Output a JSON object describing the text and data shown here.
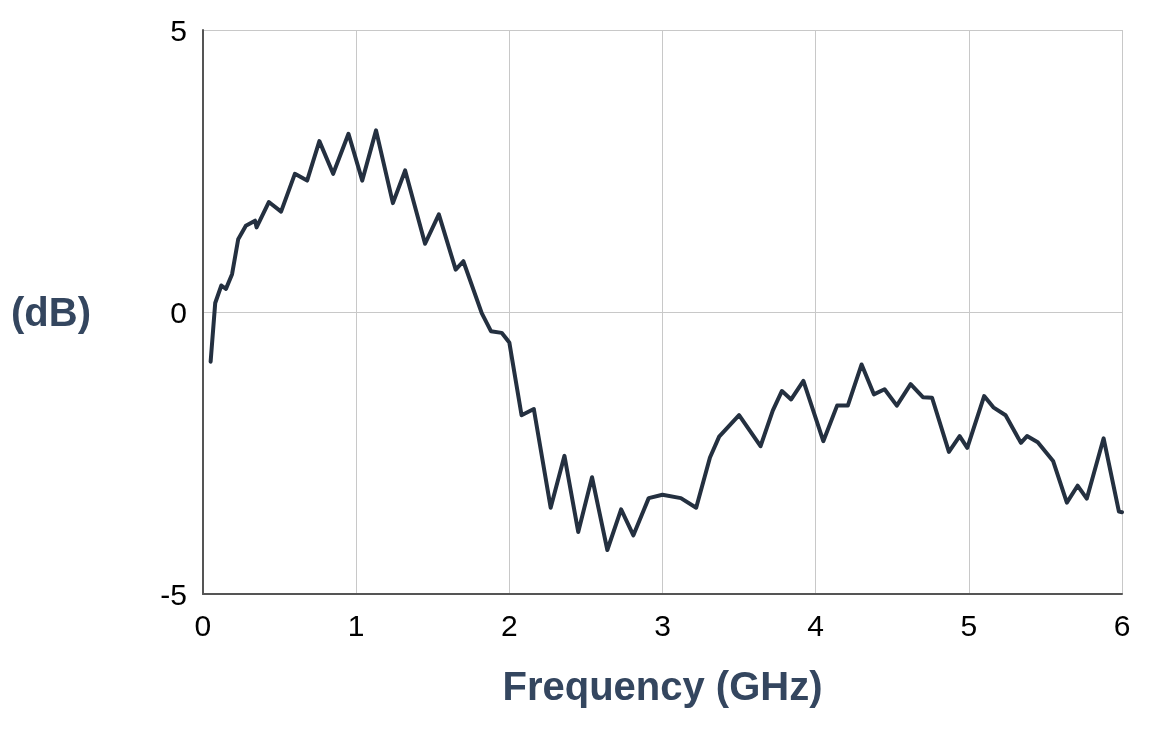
{
  "chart_data": {
    "type": "line",
    "xlabel": "Frequency (GHz)",
    "ylabel": "(dB)",
    "xlim": [
      0,
      6
    ],
    "xticks": [
      0,
      1,
      2,
      3,
      4,
      5,
      6
    ],
    "ylim": [
      -5,
      5
    ],
    "yticks": [
      -5,
      0,
      5
    ],
    "grid": true,
    "marker": "none",
    "line_style": "solid",
    "series": [
      {
        "color": "#243040",
        "x": [
          0.05,
          0.08,
          0.12,
          0.15,
          0.19,
          0.23,
          0.28,
          0.34,
          0.35,
          0.43,
          0.51,
          0.6,
          0.68,
          0.76,
          0.85,
          0.95,
          1.04,
          1.13,
          1.24,
          1.32,
          1.45,
          1.54,
          1.65,
          1.7,
          1.82,
          1.88,
          1.95,
          2.0,
          2.08,
          2.16,
          2.27,
          2.36,
          2.45,
          2.54,
          2.64,
          2.73,
          2.81,
          2.91,
          3.0,
          3.12,
          3.22,
          3.31,
          3.37,
          3.5,
          3.64,
          3.72,
          3.78,
          3.84,
          3.92,
          4.05,
          4.14,
          4.21,
          4.3,
          4.38,
          4.45,
          4.53,
          4.62,
          4.7,
          4.76,
          4.87,
          4.94,
          4.99,
          5.1,
          5.16,
          5.24,
          5.34,
          5.38,
          5.45,
          5.55,
          5.64,
          5.71,
          5.77,
          5.88,
          5.98,
          6.0
        ],
        "values": [
          -0.88,
          0.16,
          0.47,
          0.41,
          0.67,
          1.29,
          1.53,
          1.62,
          1.5,
          1.95,
          1.78,
          2.45,
          2.33,
          3.03,
          2.45,
          3.16,
          2.33,
          3.22,
          1.93,
          2.51,
          1.21,
          1.73,
          0.75,
          0.9,
          -0.02,
          -0.34,
          -0.37,
          -0.54,
          -1.83,
          -1.72,
          -3.47,
          -2.55,
          -3.9,
          -2.93,
          -4.22,
          -3.5,
          -3.96,
          -3.3,
          -3.24,
          -3.3,
          -3.47,
          -2.58,
          -2.21,
          -1.83,
          -2.38,
          -1.75,
          -1.4,
          -1.55,
          -1.22,
          -2.29,
          -1.66,
          -1.66,
          -0.93,
          -1.46,
          -1.37,
          -1.66,
          -1.28,
          -1.51,
          -1.52,
          -2.48,
          -2.2,
          -2.41,
          -1.49,
          -1.69,
          -1.83,
          -2.32,
          -2.2,
          -2.31,
          -2.64,
          -3.38,
          -3.08,
          -3.31,
          -2.24,
          -3.54,
          -3.55
        ]
      }
    ]
  }
}
